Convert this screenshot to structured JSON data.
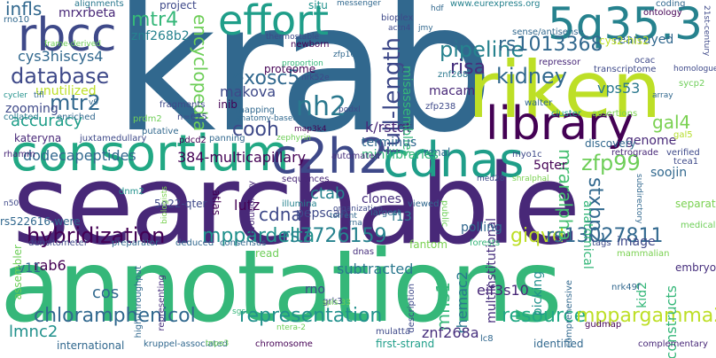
{
  "words": [
    {
      "text": "krab",
      "color": "#31688e"
    },
    {
      "text": "searchable",
      "color": "#482878"
    },
    {
      "text": "annotations",
      "color": "#35b779"
    },
    {
      "text": "riken",
      "color": "#bddf26"
    },
    {
      "text": "consortium",
      "color": "#22a884"
    },
    {
      "text": "effort",
      "color": "#1f9e89"
    },
    {
      "text": "5q35.3",
      "color": "#26828e"
    },
    {
      "text": "rbcc",
      "color": "#3e4989"
    },
    {
      "text": "library",
      "color": "#440154"
    },
    {
      "text": "cdnas",
      "color": "#1f9e89"
    },
    {
      "text": "c2h2",
      "color": "#3e4989"
    },
    {
      "text": "pipeline",
      "color": "#26828e"
    },
    {
      "text": "rs1013368",
      "color": "#31688e"
    },
    {
      "text": "database",
      "color": "#3e4989"
    },
    {
      "text": "mtr4",
      "color": "#35b779"
    },
    {
      "text": "encyclopedia",
      "color": "#6ece58"
    },
    {
      "text": "exosc5",
      "color": "#31688e"
    },
    {
      "text": "nh2",
      "color": "#2a788e"
    },
    {
      "text": "full-length",
      "color": "#3e4989"
    },
    {
      "text": "kidney",
      "color": "#31688e"
    },
    {
      "text": "risa",
      "color": "#472f7d"
    },
    {
      "text": "vps53",
      "color": "#2a788e"
    },
    {
      "text": "gal4",
      "color": "#7ad151"
    },
    {
      "text": "accuracy",
      "color": "#1f9e89"
    },
    {
      "text": "mtr2",
      "color": "#31688e"
    },
    {
      "text": "cooh",
      "color": "#3e4989"
    },
    {
      "text": "zfp99",
      "color": "#6ece58"
    },
    {
      "text": "k/rstqt",
      "color": "#482878"
    },
    {
      "text": "dodecapeptides",
      "color": "#31688e"
    },
    {
      "text": "384-multicapillary",
      "color": "#440154"
    },
    {
      "text": "hybridization",
      "color": "#440154"
    },
    {
      "text": "mppardelta",
      "color": "#21918c"
    },
    {
      "text": "rs7726159",
      "color": "#26828e"
    },
    {
      "text": "giqvd",
      "color": "#bddf26"
    },
    {
      "text": "rs13027811",
      "color": "#31688e"
    },
    {
      "text": "mraralpha",
      "color": "#44bf70"
    },
    {
      "text": "stxbp2",
      "color": "#31688e"
    },
    {
      "text": "chloramphenicol",
      "color": "#31688e"
    },
    {
      "text": "representation",
      "color": "#21918c"
    },
    {
      "text": "resource",
      "color": "#22a884"
    },
    {
      "text": "mppargamma2",
      "color": "#bddf26"
    },
    {
      "text": "cdna",
      "color": "#3e4989"
    },
    {
      "text": "ctab",
      "color": "#26828e"
    },
    {
      "text": "pepscan",
      "color": "#3e4989"
    },
    {
      "text": "lutz",
      "color": "#440154"
    },
    {
      "text": "mns1",
      "color": "#35b779"
    },
    {
      "text": "rhemac2",
      "color": "#2a788e"
    },
    {
      "text": "multiinstitutional",
      "color": "#472f7d"
    },
    {
      "text": "znf268a",
      "color": "#472f7d"
    },
    {
      "text": "eif3s10",
      "color": "#482878"
    },
    {
      "text": "subtracted",
      "color": "#2a788e"
    },
    {
      "text": "cos",
      "color": "#31688e"
    },
    {
      "text": "rab6",
      "color": "#440154"
    },
    {
      "text": "v11",
      "color": "#31688e"
    },
    {
      "text": "lmnc2",
      "color": "#21918c"
    },
    {
      "text": "infls",
      "color": "#31688e"
    },
    {
      "text": "mrxrbeta",
      "color": "#482878"
    },
    {
      "text": "cys3hiscys4",
      "color": "#31688e"
    },
    {
      "text": "znf268b2",
      "color": "#26828e"
    },
    {
      "text": "project",
      "color": "#3e4989"
    },
    {
      "text": "situ",
      "color": "#21918c"
    },
    {
      "text": "www.eurexpress.org",
      "color": "#26828e"
    },
    {
      "text": "zooming",
      "color": "#3e4989"
    },
    {
      "text": "unutilized",
      "color": "#bddf26"
    },
    {
      "text": "kateryna",
      "color": "#482878"
    },
    {
      "text": "makova",
      "color": "#3e4989"
    },
    {
      "text": "inib",
      "color": "#440154"
    },
    {
      "text": "proteome",
      "color": "#440154"
    },
    {
      "text": "macam",
      "color": "#482878"
    },
    {
      "text": "misassemblies",
      "color": "#35b779"
    },
    {
      "text": "znf268",
      "color": "#2a788e"
    },
    {
      "text": "zfp238",
      "color": "#3e4989"
    },
    {
      "text": "rat",
      "color": "#31688e"
    },
    {
      "text": "rearrayed",
      "color": "#31688e"
    },
    {
      "text": "genome",
      "color": "#482878"
    },
    {
      "text": "soojin",
      "color": "#31688e"
    },
    {
      "text": "5qter",
      "color": "#440154"
    },
    {
      "text": "renal",
      "color": "#31688e"
    },
    {
      "text": "terminus",
      "color": "#31688e"
    },
    {
      "text": "minilibraries",
      "color": "#35b779"
    },
    {
      "text": "clones",
      "color": "#472f7d"
    },
    {
      "text": "f13",
      "color": "#2a788e"
    },
    {
      "text": "atlas",
      "color": "#440154"
    },
    {
      "text": "illumina",
      "color": "#26828e"
    },
    {
      "text": "assembler",
      "color": "#6ece58"
    },
    {
      "text": "rs522616-were",
      "color": "#31688e"
    },
    {
      "text": "read",
      "color": "#6ece58"
    },
    {
      "text": "polling",
      "color": "#31688e"
    },
    {
      "text": "image",
      "color": "#3e4989"
    },
    {
      "text": "anatomical",
      "color": "#35b779"
    },
    {
      "text": "separated",
      "color": "#7ad151"
    },
    {
      "text": "constructs",
      "color": "#35b779"
    },
    {
      "text": "kid2",
      "color": "#35b779"
    },
    {
      "text": "picking",
      "color": "#21918c"
    },
    {
      "text": "nrk49f",
      "color": "#31688e"
    },
    {
      "text": "embryos",
      "color": "#472f7d"
    },
    {
      "text": "rno",
      "color": "#3e4989"
    },
    {
      "text": "grk3",
      "color": "#3e4989"
    },
    {
      "text": "dnas",
      "color": "#472f7d"
    },
    {
      "text": "fantom",
      "color": "#7ad151"
    },
    {
      "text": "lc8",
      "color": "#31688e"
    },
    {
      "text": "first-strand",
      "color": "#1f9e89"
    },
    {
      "text": "identified",
      "color": "#31688e"
    },
    {
      "text": "mulatta",
      "color": "#3e4989"
    },
    {
      "text": "chromosome",
      "color": "#440154"
    },
    {
      "text": "international",
      "color": "#31688e"
    },
    {
      "text": "kruppel-associated",
      "color": "#31688e"
    },
    {
      "text": "high-throughput",
      "color": "#31688e"
    },
    {
      "text": "representing",
      "color": "#472f7d"
    },
    {
      "text": "alignments",
      "color": "#2a788e"
    },
    {
      "text": "rno10",
      "color": "#31688e"
    },
    {
      "text": "n=675",
      "color": "#3e4989"
    },
    {
      "text": "fragments",
      "color": "#3e4989"
    },
    {
      "text": "prdm2",
      "color": "#6ece58"
    },
    {
      "text": "putative",
      "color": "#31688e"
    },
    {
      "text": "panning",
      "color": "#31688e"
    },
    {
      "text": "pdcd2",
      "color": "#440154"
    },
    {
      "text": "collated",
      "color": "#2a788e"
    },
    {
      "text": "enriched",
      "color": "#31688e"
    },
    {
      "text": "juxtamedullary",
      "color": "#3e4989"
    },
    {
      "text": "rhamm",
      "color": "#482878"
    },
    {
      "text": "5q22-qter",
      "color": "#3e4989"
    },
    {
      "text": "dnm2",
      "color": "#21918c"
    },
    {
      "text": "evolutionary",
      "color": "#482878"
    },
    {
      "text": "densitometer",
      "color": "#3e4989"
    },
    {
      "text": "preparator",
      "color": "#31688e"
    },
    {
      "text": "deduced",
      "color": "#31688e"
    },
    {
      "text": "consensus",
      "color": "#31688e"
    },
    {
      "text": "automated",
      "color": "#472f7d"
    },
    {
      "text": "sequences",
      "color": "#482878"
    },
    {
      "text": "viewed",
      "color": "#31688e"
    },
    {
      "text": "largest",
      "color": "#31688e"
    },
    {
      "text": "public",
      "color": "#6ece58"
    },
    {
      "text": "forests",
      "color": "#35b779"
    },
    {
      "text": "description",
      "color": "#3e4989"
    },
    {
      "text": "comprehensive",
      "color": "#31688e"
    },
    {
      "text": "gudmap",
      "color": "#440154"
    },
    {
      "text": "complementary",
      "color": "#482878"
    },
    {
      "text": "tags",
      "color": "#3e4989"
    },
    {
      "text": "mammalian",
      "color": "#7ad151"
    },
    {
      "text": "myo1c",
      "color": "#3e4989"
    },
    {
      "text": "discovery",
      "color": "#31688e"
    },
    {
      "text": "retrograde",
      "color": "#482878"
    },
    {
      "text": "verified",
      "color": "#3e4989"
    },
    {
      "text": "tcea1",
      "color": "#3e4989"
    },
    {
      "text": "medical",
      "color": "#6ece58"
    },
    {
      "text": "gal5",
      "color": "#b5de2b"
    },
    {
      "text": "ocac",
      "color": "#3e4989"
    },
    {
      "text": "cluster",
      "color": "#1f9e89"
    },
    {
      "text": "assertions",
      "color": "#7ad151"
    },
    {
      "text": "walter",
      "color": "#31688e"
    },
    {
      "text": "transcriptome",
      "color": "#3e4989"
    },
    {
      "text": "repressor",
      "color": "#482878"
    },
    {
      "text": "coding",
      "color": "#31688e"
    },
    {
      "text": "ontology",
      "color": "#440154"
    },
    {
      "text": "cys2-his2",
      "color": "#bddf26"
    },
    {
      "text": "sycp2",
      "color": "#6ece58"
    },
    {
      "text": "21st-century",
      "color": "#3e4989"
    },
    {
      "text": "homologue",
      "color": "#3e4989"
    },
    {
      "text": "array",
      "color": "#31688e"
    },
    {
      "text": "sense/antisense",
      "color": "#31688e"
    },
    {
      "text": "bioplex",
      "color": "#3e4989"
    },
    {
      "text": "actn4",
      "color": "#3e4989"
    },
    {
      "text": "jmy",
      "color": "#31688e"
    },
    {
      "text": "hdf",
      "color": "#31688e"
    },
    {
      "text": "thermostable",
      "color": "#3e4989"
    },
    {
      "text": "newborn",
      "color": "#440154"
    },
    {
      "text": "zfp161",
      "color": "#31688e"
    },
    {
      "text": "messenger",
      "color": "#31688e"
    },
    {
      "text": "podxl",
      "color": "#3e4989"
    },
    {
      "text": "nrk52e",
      "color": "#3e4989"
    },
    {
      "text": "mapping",
      "color": "#31688e"
    },
    {
      "text": "anatomy-based",
      "color": "#31688e"
    },
    {
      "text": "map3k4",
      "color": "#440154"
    },
    {
      "text": "zephyrin",
      "color": "#6ece58"
    },
    {
      "text": "proportion",
      "color": "#35b779"
    },
    {
      "text": "spls.33",
      "color": "#6ece58"
    },
    {
      "text": "sgsb",
      "color": "#35b779"
    },
    {
      "text": "ntera-2",
      "color": "#6ece58"
    },
    {
      "text": "organization",
      "color": "#3e4989"
    },
    {
      "text": "torrent",
      "color": "#31688e"
    },
    {
      "text": "rna",
      "color": "#31688e"
    },
    {
      "text": "med28",
      "color": "#3e4989"
    },
    {
      "text": "shralphal",
      "color": "#7ad151"
    },
    {
      "text": "tnpo3",
      "color": "#6ece58"
    },
    {
      "text": "n50",
      "color": "#3e4989"
    },
    {
      "text": "cycler",
      "color": "#21918c"
    },
    {
      "text": "v9",
      "color": "#31688e"
    },
    {
      "text": "frame-derived",
      "color": "#6ece58"
    },
    {
      "text": "tifl",
      "color": "#31688e"
    },
    {
      "text": "biologists",
      "color": "#7ad151"
    },
    {
      "text": "subdirectory",
      "color": "#31688e"
    }
  ]
}
